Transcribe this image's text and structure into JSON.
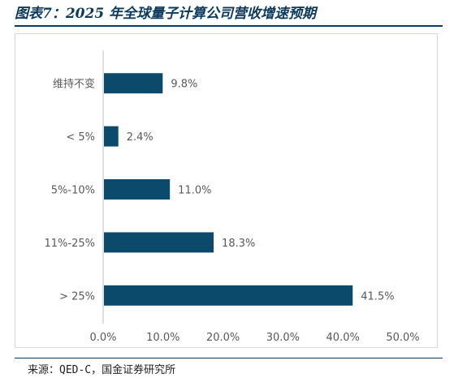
{
  "figure": {
    "title": "图表7：2025 年全球量子计算公司营收增速预期",
    "source": "来源：QED-C，国金证券研究所"
  },
  "colors": {
    "bar": "#0b4a6b",
    "title": "#0b3a5c",
    "axis": "#bfbfbf",
    "text": "#595959"
  },
  "chart_data": {
    "type": "bar",
    "orientation": "horizontal",
    "categories": [
      "维持不变",
      "< 5%",
      "5%-10%",
      "11%-25%",
      "> 25%"
    ],
    "values": [
      9.8,
      2.4,
      11.0,
      18.3,
      41.5
    ],
    "value_labels": [
      "9.8%",
      "2.4%",
      "11.0%",
      "18.3%",
      "41.5%"
    ],
    "xlim": [
      0,
      50
    ],
    "x_ticks": [
      0,
      10,
      20,
      30,
      40,
      50
    ],
    "x_tick_labels": [
      "0.0%",
      "10.0%",
      "20.0%",
      "30.0%",
      "40.0%",
      "50.0%"
    ],
    "grid": false,
    "legend": "none"
  }
}
